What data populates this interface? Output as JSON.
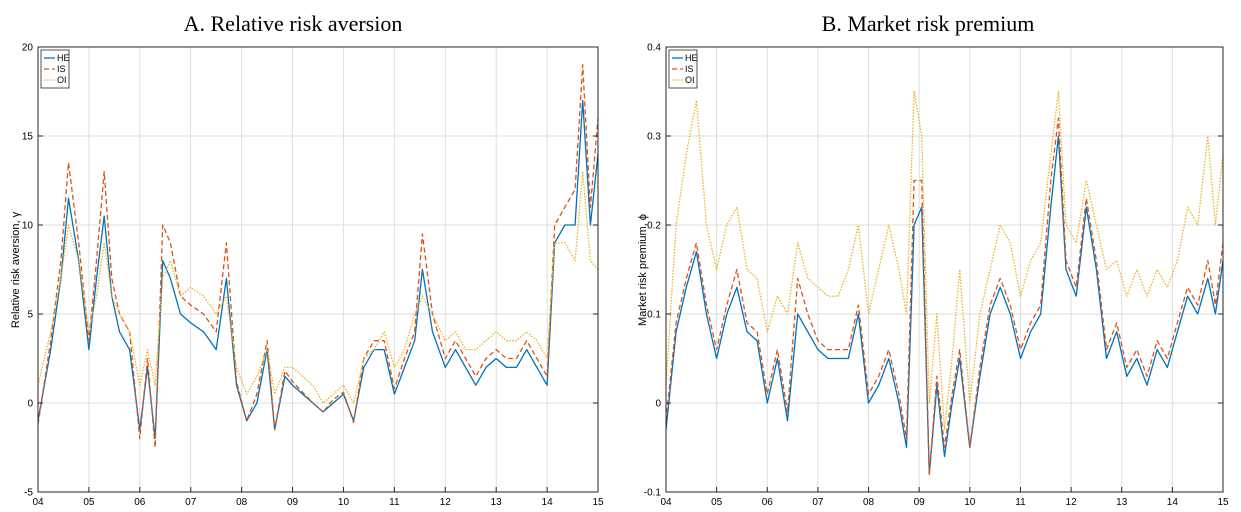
{
  "chart_data": [
    {
      "type": "line",
      "title": "A. Relative risk aversion",
      "xlabel": "",
      "ylabel": "Relative risk aversion, γ",
      "xlim": [
        2004,
        2015
      ],
      "ylim": [
        -5,
        20
      ],
      "xticks": [
        2004,
        2005,
        2006,
        2007,
        2008,
        2009,
        2010,
        2011,
        2012,
        2013,
        2014,
        2015
      ],
      "xtick_labels": [
        "04",
        "05",
        "06",
        "07",
        "08",
        "09",
        "10",
        "11",
        "12",
        "13",
        "14",
        "15"
      ],
      "yticks": [
        -5,
        0,
        5,
        10,
        15,
        20
      ],
      "ytick_labels": [
        "-5",
        "0",
        "5",
        "10",
        "15",
        "20"
      ],
      "grid": true,
      "legend": "top-left",
      "x": [
        2004.0,
        2004.25,
        2004.45,
        2004.6,
        2004.8,
        2005.0,
        2005.15,
        2005.3,
        2005.45,
        2005.6,
        2005.8,
        2006.0,
        2006.15,
        2006.3,
        2006.45,
        2006.6,
        2006.8,
        2007.0,
        2007.25,
        2007.5,
        2007.7,
        2007.9,
        2008.1,
        2008.3,
        2008.5,
        2008.65,
        2008.85,
        2009.0,
        2009.2,
        2009.4,
        2009.6,
        2009.8,
        2010.0,
        2010.2,
        2010.4,
        2010.6,
        2010.8,
        2011.0,
        2011.2,
        2011.4,
        2011.55,
        2011.75,
        2012.0,
        2012.2,
        2012.4,
        2012.6,
        2012.8,
        2013.0,
        2013.2,
        2013.4,
        2013.6,
        2013.8,
        2014.0,
        2014.15,
        2014.35,
        2014.55,
        2014.7,
        2014.85,
        2015.0
      ],
      "series": [
        {
          "name": "HE",
          "color": "#0072BD",
          "dash": "solid",
          "values": [
            -1,
            3,
            7,
            11.5,
            8,
            3,
            7,
            10.5,
            6,
            4,
            3,
            -1.5,
            2,
            -2,
            8,
            7,
            5,
            4.5,
            4,
            3,
            7,
            1,
            -1,
            0,
            3,
            -1.5,
            1.5,
            1,
            0.5,
            0,
            -0.5,
            0,
            0.5,
            -1,
            2,
            3,
            3,
            0.5,
            2,
            3.5,
            7.5,
            4,
            2,
            3,
            2,
            1,
            2,
            2.5,
            2,
            2,
            3,
            2,
            1,
            9,
            10,
            10,
            17,
            10,
            14
          ]
        },
        {
          "name": "IS",
          "color": "#D95319",
          "dash": "dashed",
          "values": [
            -1.2,
            3.5,
            8,
            13.5,
            9,
            3.5,
            8,
            13,
            7,
            5,
            4,
            -2,
            2.5,
            -2.5,
            10,
            9,
            6,
            5.5,
            5,
            4,
            9,
            1.2,
            -1,
            0.5,
            3.5,
            -1.5,
            1.8,
            1.2,
            0.6,
            0,
            -0.5,
            0.2,
            0.6,
            -1.1,
            2.5,
            3.5,
            3.5,
            0.8,
            2.5,
            4,
            9.5,
            5,
            2.5,
            3.5,
            2.5,
            1.5,
            2.5,
            3,
            2.5,
            2.5,
            3.5,
            2.5,
            1.5,
            10,
            11,
            12,
            19,
            11,
            16
          ]
        },
        {
          "name": "OI",
          "color": "#EDB120",
          "dash": "dotted",
          "values": [
            1,
            4,
            7,
            10,
            8,
            4,
            6,
            9,
            6,
            5,
            4,
            1,
            3,
            1,
            7,
            8,
            6,
            6.5,
            6,
            5,
            6,
            2,
            0.5,
            1.5,
            3,
            0.5,
            2,
            2,
            1.5,
            1,
            0,
            0.5,
            1,
            0,
            2.5,
            3,
            4,
            2,
            3,
            5,
            6,
            5,
            3.5,
            4,
            3,
            3,
            3.5,
            4,
            3.5,
            3.5,
            4,
            3.5,
            2.5,
            9,
            9,
            8,
            13,
            8,
            7.5
          ]
        }
      ]
    },
    {
      "type": "line",
      "title": "B. Market risk premium",
      "xlabel": "",
      "ylabel": "Market risk premium, ϕ",
      "xlim": [
        2004,
        2015
      ],
      "ylim": [
        -0.1,
        0.4
      ],
      "xticks": [
        2004,
        2005,
        2006,
        2007,
        2008,
        2009,
        2010,
        2011,
        2012,
        2013,
        2014,
        2015
      ],
      "xtick_labels": [
        "04",
        "05",
        "06",
        "07",
        "08",
        "09",
        "10",
        "11",
        "12",
        "13",
        "14",
        "15"
      ],
      "yticks": [
        -0.1,
        0,
        0.1,
        0.2,
        0.3,
        0.4
      ],
      "ytick_labels": [
        "-0.1",
        "0",
        "0.1",
        "0.2",
        "0.3",
        "0.4"
      ],
      "grid": true,
      "legend": "top-left",
      "x": [
        2004.0,
        2004.2,
        2004.4,
        2004.6,
        2004.8,
        2005.0,
        2005.2,
        2005.4,
        2005.6,
        2005.8,
        2006.0,
        2006.2,
        2006.4,
        2006.6,
        2006.8,
        2007.0,
        2007.2,
        2007.4,
        2007.6,
        2007.8,
        2008.0,
        2008.2,
        2008.4,
        2008.6,
        2008.75,
        2008.9,
        2009.05,
        2009.2,
        2009.35,
        2009.5,
        2009.65,
        2009.8,
        2010.0,
        2010.2,
        2010.4,
        2010.6,
        2010.8,
        2011.0,
        2011.2,
        2011.4,
        2011.6,
        2011.75,
        2011.9,
        2012.1,
        2012.3,
        2012.5,
        2012.7,
        2012.9,
        2013.1,
        2013.3,
        2013.5,
        2013.7,
        2013.9,
        2014.1,
        2014.3,
        2014.5,
        2014.7,
        2014.85,
        2015.0
      ],
      "series": [
        {
          "name": "HE",
          "color": "#0072BD",
          "dash": "solid",
          "values": [
            -0.03,
            0.08,
            0.13,
            0.17,
            0.1,
            0.05,
            0.1,
            0.13,
            0.08,
            0.07,
            0.0,
            0.05,
            -0.02,
            0.1,
            0.08,
            0.06,
            0.05,
            0.05,
            0.05,
            0.1,
            0.0,
            0.02,
            0.05,
            0.0,
            -0.05,
            0.2,
            0.22,
            -0.08,
            0.02,
            -0.06,
            0.0,
            0.05,
            -0.05,
            0.03,
            0.1,
            0.13,
            0.1,
            0.05,
            0.08,
            0.1,
            0.22,
            0.3,
            0.15,
            0.12,
            0.22,
            0.15,
            0.05,
            0.08,
            0.03,
            0.05,
            0.02,
            0.06,
            0.04,
            0.08,
            0.12,
            0.1,
            0.14,
            0.1,
            0.16
          ]
        },
        {
          "name": "IS",
          "color": "#D95319",
          "dash": "dashed",
          "values": [
            -0.02,
            0.09,
            0.14,
            0.18,
            0.11,
            0.06,
            0.11,
            0.15,
            0.09,
            0.08,
            0.01,
            0.06,
            -0.01,
            0.14,
            0.1,
            0.07,
            0.06,
            0.06,
            0.06,
            0.11,
            0.01,
            0.03,
            0.06,
            0.01,
            -0.04,
            0.25,
            0.25,
            -0.08,
            0.03,
            -0.05,
            0.01,
            0.06,
            -0.05,
            0.04,
            0.11,
            0.14,
            0.11,
            0.06,
            0.09,
            0.11,
            0.25,
            0.32,
            0.16,
            0.13,
            0.23,
            0.16,
            0.06,
            0.09,
            0.04,
            0.06,
            0.03,
            0.07,
            0.05,
            0.09,
            0.13,
            0.11,
            0.16,
            0.11,
            0.18
          ]
        },
        {
          "name": "OI",
          "color": "#EDB120",
          "dash": "dotted",
          "values": [
            0.02,
            0.2,
            0.28,
            0.34,
            0.2,
            0.15,
            0.2,
            0.22,
            0.15,
            0.14,
            0.08,
            0.12,
            0.1,
            0.18,
            0.14,
            0.13,
            0.12,
            0.12,
            0.15,
            0.2,
            0.1,
            0.15,
            0.2,
            0.15,
            0.1,
            0.35,
            0.3,
            0.0,
            0.1,
            -0.03,
            0.05,
            0.15,
            0.0,
            0.1,
            0.15,
            0.2,
            0.18,
            0.12,
            0.16,
            0.18,
            0.28,
            0.35,
            0.2,
            0.18,
            0.25,
            0.2,
            0.15,
            0.16,
            0.12,
            0.15,
            0.12,
            0.15,
            0.13,
            0.16,
            0.22,
            0.2,
            0.3,
            0.2,
            0.28
          ]
        }
      ]
    }
  ]
}
